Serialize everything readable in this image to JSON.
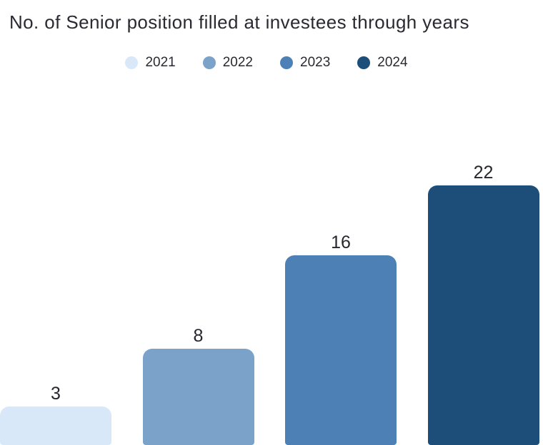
{
  "chart_data": {
    "type": "bar",
    "title": "No. of Senior position filled at investees through years",
    "categories": [
      "2021",
      "2022",
      "2023",
      "2024"
    ],
    "values": [
      3,
      8,
      16,
      22
    ],
    "colors": [
      "#d9e8f9",
      "#7ba2c9",
      "#4d80b4",
      "#1d4e79"
    ],
    "value_labels_shown": true,
    "legend_position": "top",
    "legend_marker": "circle",
    "grid": false,
    "axes_visible": false,
    "baseline_value": 0,
    "text_color": "#2a2a32",
    "background_color": "#ffffff"
  }
}
